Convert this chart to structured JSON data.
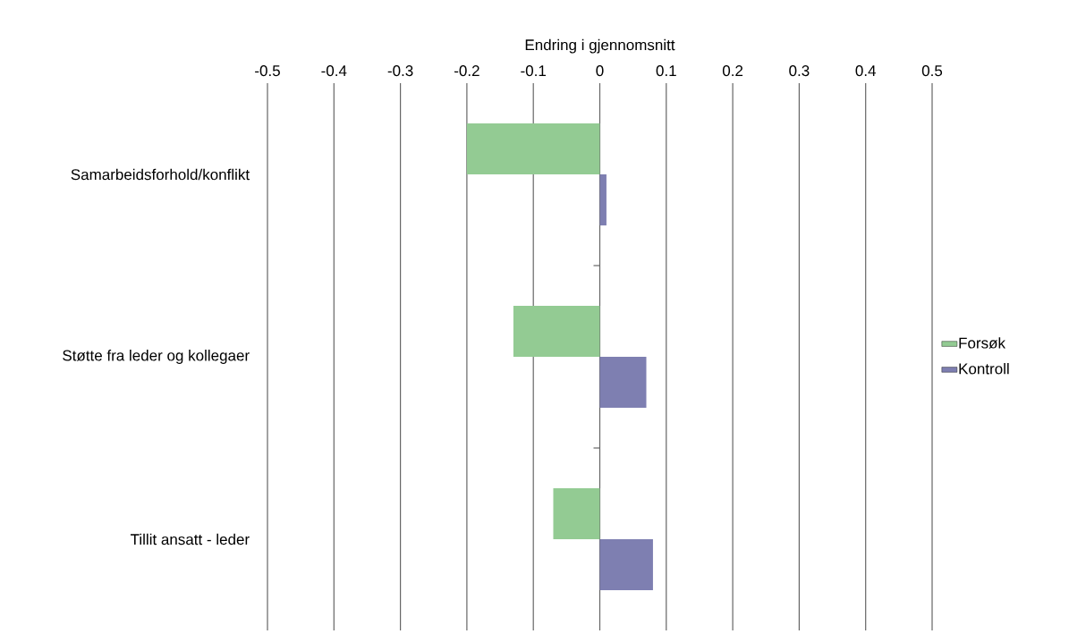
{
  "chart_data": {
    "type": "bar",
    "orientation": "horizontal",
    "xlabel": "Endring i gjennomsnitt",
    "categories": [
      "Samarbeidsforhold/konflikt",
      "Støtte fra leder og kollegaer",
      "Tillit ansatt - leder"
    ],
    "series": [
      {
        "name": "Forsøk",
        "color": "#93cb93",
        "values": [
          -0.2,
          -0.13,
          -0.07
        ]
      },
      {
        "name": "Kontroll",
        "color": "#7e7fb1",
        "values": [
          0.01,
          0.07,
          0.08
        ]
      }
    ],
    "xlim": [
      -0.5,
      0.5
    ],
    "xticks": [
      -0.5,
      -0.4,
      -0.3,
      -0.2,
      -0.1,
      0,
      0.1,
      0.2,
      0.3,
      0.4,
      0.5
    ],
    "grid": "x",
    "legend": "right"
  }
}
